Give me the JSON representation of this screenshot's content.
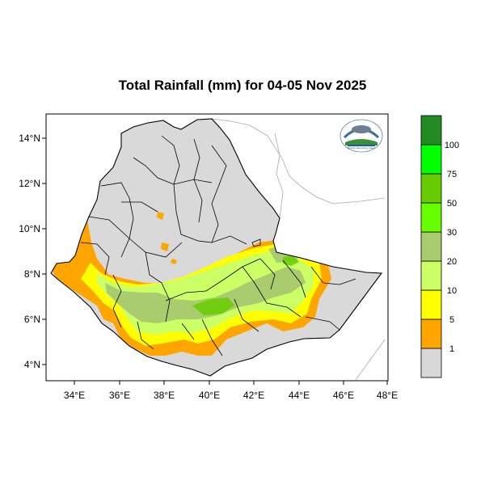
{
  "title": "Total Rainfall (mm) for 04-05 Nov 2025",
  "map": {
    "lat_labels": [
      "14°N",
      "12°N",
      "10°N",
      "8°N",
      "6°N",
      "4°N"
    ],
    "lon_labels": [
      "34°E",
      "36°E",
      "38°E",
      "40°E",
      "42°E",
      "44°E",
      "46°E",
      "48°E"
    ],
    "lon_range": [
      33.0,
      48.2
    ],
    "lat_range": [
      3.3,
      15.0
    ]
  },
  "legend": {
    "labels": [
      "1",
      "5",
      "10",
      "20",
      "30",
      "50",
      "75",
      "100"
    ],
    "colors": [
      "#d8d8d8",
      "#ffa500",
      "#ffff00",
      "#ccff66",
      "#a8cc6e",
      "#66ff00",
      "#66cc00",
      "#00ff00",
      "#228b22"
    ]
  },
  "logo": {
    "caption": "Ethiopian Meteorology Institute",
    "icon": "ethiopian-meteorology-logo"
  }
}
